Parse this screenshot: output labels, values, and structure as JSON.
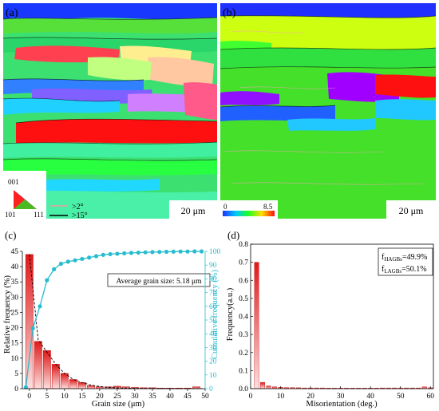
{
  "panels": {
    "a": {
      "label": "(a)",
      "scale_bar": "20 μm",
      "ipf_key": {
        "top": "001",
        "left": "101",
        "right": "111"
      },
      "boundary_legend": [
        {
          "label": ">2°",
          "color": "#e8a0a0"
        },
        {
          "label": ">15°",
          "color": "#000000"
        }
      ]
    },
    "b": {
      "label": "(b)",
      "scale_bar": "20 μm",
      "kam_scale": {
        "min": "0",
        "max": "8.5"
      }
    }
  },
  "chart_data": [
    {
      "panel": "(c)",
      "type": "bar",
      "xlabel": "Grain size (μm)",
      "ylabel": "Relative frequency (%)",
      "y2label": "Cumulative frequency (%)",
      "xlim": [
        -2,
        50
      ],
      "ylim": [
        0,
        45
      ],
      "y2lim": [
        0,
        100
      ],
      "xticks": [
        0,
        5,
        10,
        15,
        20,
        25,
        30,
        35,
        40,
        45,
        50
      ],
      "yticks": [
        0,
        5,
        10,
        15,
        20,
        25,
        30,
        35,
        40,
        45
      ],
      "y2ticks": [
        0,
        10,
        20,
        30,
        40,
        50,
        60,
        70,
        80,
        90,
        100
      ],
      "annotation": "Average grain size: 5.18 μm",
      "bars": {
        "x": [
          0,
          2.5,
          5,
          7.5,
          10,
          12.5,
          15,
          17.5,
          20,
          22.5,
          25,
          27.5,
          30,
          32.5,
          35,
          37.5,
          40,
          42.5,
          45,
          47.5
        ],
        "values": [
          44,
          15.5,
          12.5,
          8,
          5,
          3,
          2,
          1,
          0.6,
          0.6,
          0.8,
          0.6,
          0.4,
          0.3,
          0.3,
          0.2,
          0.2,
          0.2,
          0.2,
          0.6
        ]
      },
      "fit_curve": {
        "x": [
          0,
          2.5,
          5,
          7.5,
          10,
          12.5,
          15,
          17.5,
          20,
          22.5,
          25,
          30,
          40,
          50
        ],
        "values": [
          44,
          16,
          12,
          8,
          5,
          3,
          2,
          1.2,
          0.7,
          0.4,
          0.25,
          0.1,
          0.02,
          0
        ]
      },
      "cumulative": {
        "x": [
          -1,
          1,
          3,
          5,
          7,
          9,
          11,
          13,
          15,
          17,
          19,
          21,
          23,
          25,
          27,
          29,
          31,
          33,
          35,
          37,
          39,
          41,
          43,
          45,
          47,
          49
        ],
        "values": [
          1,
          44,
          60,
          79,
          87,
          91,
          92.5,
          93.5,
          94.5,
          95.5,
          96.5,
          97.5,
          98,
          98.3,
          98.6,
          98.9,
          99.1,
          99.3,
          99.5,
          99.6,
          99.7,
          99.8,
          99.9,
          99.9,
          100,
          100
        ]
      }
    },
    {
      "panel": "(d)",
      "type": "bar",
      "xlabel": "Misorientation (deg.)",
      "ylabel": "Frequency(a.u.)",
      "xlim": [
        0,
        61
      ],
      "ylim": [
        0,
        0.8
      ],
      "xticks": [
        0,
        10,
        20,
        30,
        40,
        50,
        60
      ],
      "yticks": [
        0.0,
        0.1,
        0.2,
        0.3,
        0.4,
        0.5,
        0.6,
        0.7,
        0.8
      ],
      "legend": [
        {
          "label": "f",
          "sub": "HAGBs",
          "value": "=49.9%"
        },
        {
          "label": "f",
          "sub": "LAGBs",
          "value": "=50.1%"
        }
      ],
      "bars": {
        "x": [
          2,
          4,
          6,
          8,
          10,
          12,
          14,
          16,
          18,
          20,
          22,
          24,
          26,
          28,
          30,
          32,
          34,
          36,
          38,
          40,
          42,
          44,
          46,
          48,
          50,
          52,
          54,
          56,
          58,
          60
        ],
        "values": [
          0.7,
          0.035,
          0.015,
          0.01,
          0.008,
          0.006,
          0.006,
          0.005,
          0.004,
          0.004,
          0.004,
          0.004,
          0.003,
          0.003,
          0.003,
          0.003,
          0.003,
          0.003,
          0.003,
          0.003,
          0.003,
          0.004,
          0.004,
          0.004,
          0.004,
          0.004,
          0.004,
          0.004,
          0.01,
          0.005
        ]
      }
    }
  ],
  "colors": {
    "bar_red": "#e01818",
    "cumulative": "#27bcd0",
    "axis": "#000000"
  }
}
